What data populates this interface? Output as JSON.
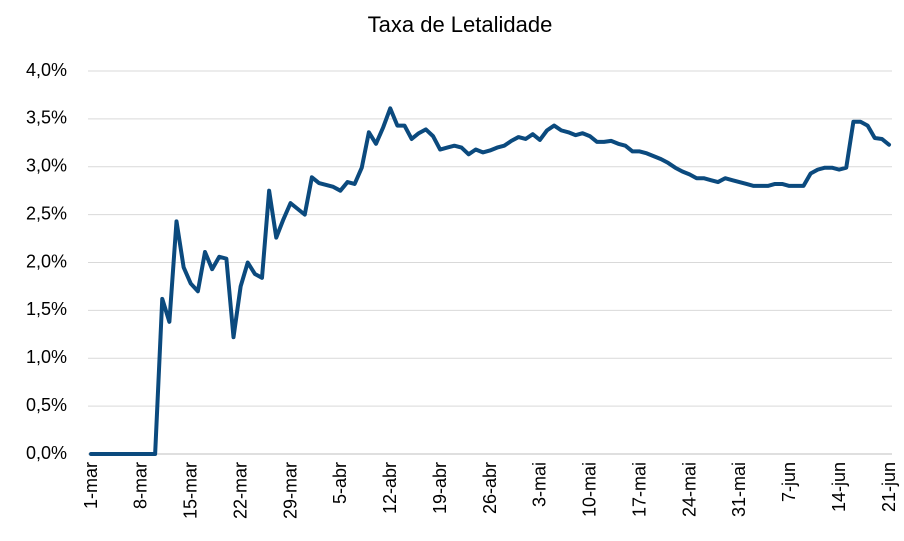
{
  "chart_data": {
    "type": "line",
    "title": "Taxa de Letalidade",
    "color": "#0b4a7e",
    "categories": [
      "1-mar",
      null,
      null,
      null,
      null,
      null,
      null,
      "8-mar",
      null,
      null,
      null,
      null,
      null,
      null,
      "15-mar",
      null,
      null,
      null,
      null,
      null,
      null,
      "22-mar",
      null,
      null,
      null,
      null,
      null,
      null,
      "29-mar",
      null,
      null,
      null,
      null,
      null,
      null,
      "5-abr",
      null,
      null,
      null,
      null,
      null,
      null,
      "12-abr",
      null,
      null,
      null,
      null,
      null,
      null,
      "19-abr",
      null,
      null,
      null,
      null,
      null,
      null,
      "26-abr",
      null,
      null,
      null,
      null,
      null,
      null,
      "3-mai",
      null,
      null,
      null,
      null,
      null,
      null,
      "10-mai",
      null,
      null,
      null,
      null,
      null,
      null,
      "17-mai",
      null,
      null,
      null,
      null,
      null,
      null,
      "24-mai",
      null,
      null,
      null,
      null,
      null,
      null,
      "31-mai",
      null,
      null,
      null,
      null,
      null,
      null,
      "7-jun",
      null,
      null,
      null,
      null,
      null,
      null,
      "14-jun",
      null,
      null,
      null,
      null,
      null,
      null,
      "21-jun"
    ],
    "values": [
      0,
      0,
      0,
      0,
      0,
      0,
      0,
      0,
      0,
      0,
      1.62,
      1.38,
      2.43,
      1.95,
      1.78,
      1.7,
      2.11,
      1.93,
      2.06,
      2.04,
      1.22,
      1.75,
      2.0,
      1.88,
      1.84,
      2.75,
      2.26,
      2.45,
      2.62,
      2.56,
      2.5,
      2.89,
      2.83,
      2.81,
      2.79,
      2.75,
      2.84,
      2.82,
      2.99,
      3.36,
      3.24,
      3.41,
      3.61,
      3.43,
      3.43,
      3.29,
      3.35,
      3.39,
      3.32,
      3.18,
      3.2,
      3.22,
      3.2,
      3.13,
      3.18,
      3.15,
      3.17,
      3.2,
      3.22,
      3.27,
      3.31,
      3.29,
      3.34,
      3.28,
      3.38,
      3.43,
      3.38,
      3.36,
      3.33,
      3.35,
      3.32,
      3.26,
      3.26,
      3.27,
      3.24,
      3.22,
      3.16,
      3.16,
      3.14,
      3.11,
      3.08,
      3.04,
      2.99,
      2.95,
      2.92,
      2.88,
      2.88,
      2.86,
      2.84,
      2.88,
      2.86,
      2.84,
      2.82,
      2.8,
      2.8,
      2.8,
      2.82,
      2.82,
      2.8,
      2.8,
      2.8,
      2.93,
      2.97,
      2.99,
      2.99,
      2.97,
      2.99,
      3.47,
      3.47,
      3.43,
      3.3,
      3.29,
      3.23
    ],
    "ylim": [
      0,
      4
    ],
    "yticks": [
      {
        "value": 0,
        "label": "0,0%"
      },
      {
        "value": 0.5,
        "label": "0,5%"
      },
      {
        "value": 1,
        "label": "1,0%"
      },
      {
        "value": 1.5,
        "label": "1,5%"
      },
      {
        "value": 2,
        "label": "2,0%"
      },
      {
        "value": 2.5,
        "label": "2,5%"
      },
      {
        "value": 3,
        "label": "3,0%"
      },
      {
        "value": 3.5,
        "label": "3,5%"
      },
      {
        "value": 4,
        "label": "4,0%"
      }
    ],
    "grid": true
  }
}
